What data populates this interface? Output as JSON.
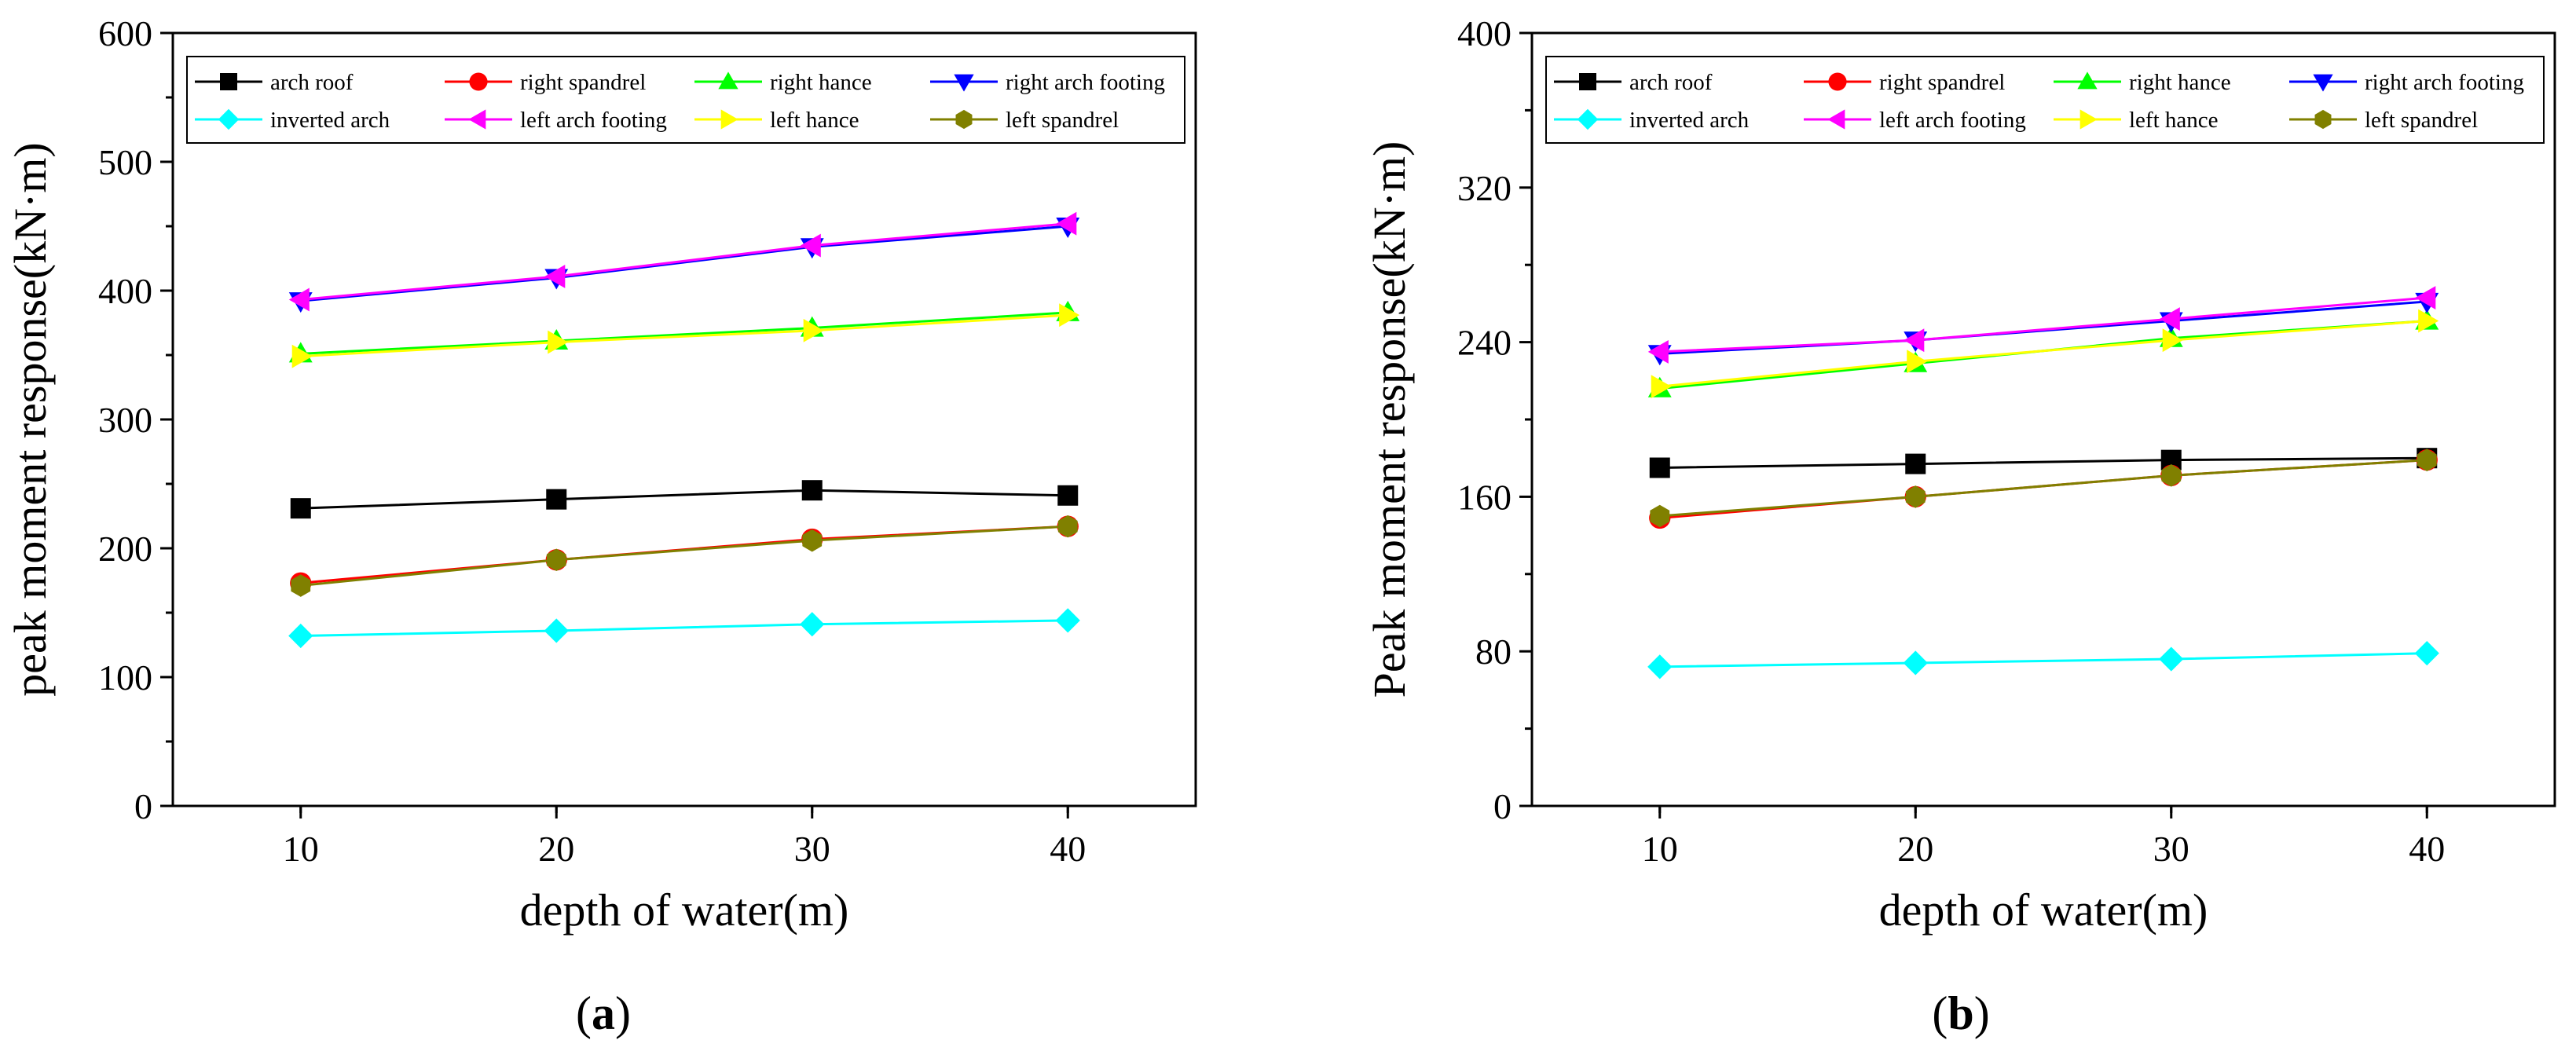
{
  "chart_data": [
    {
      "type": "line",
      "panel_label": "a",
      "xlabel": "depth of water(m)",
      "ylabel": "peak moment response(kN·m)",
      "x": [
        10,
        20,
        30,
        40
      ],
      "xlim": [
        5,
        45
      ],
      "ylim": [
        0,
        600
      ],
      "yticks": [
        0,
        100,
        200,
        300,
        400,
        500,
        600
      ],
      "xticks": [
        10,
        20,
        30,
        40
      ],
      "grid": false,
      "legend_position": "top",
      "series": [
        {
          "name": "arch roof",
          "color": "#000000",
          "marker": "square",
          "values": [
            231,
            238,
            245,
            241
          ]
        },
        {
          "name": "right spandrel",
          "color": "#ff0000",
          "marker": "circle",
          "values": [
            173,
            191,
            207,
            217
          ]
        },
        {
          "name": "right hance",
          "color": "#00ff00",
          "marker": "triangle-up",
          "values": [
            351,
            361,
            371,
            383
          ]
        },
        {
          "name": "right arch footing",
          "color": "#0000ff",
          "marker": "triangle-down",
          "values": [
            392,
            410,
            434,
            450
          ]
        },
        {
          "name": "inverted arch",
          "color": "#00ffff",
          "marker": "diamond",
          "values": [
            132,
            136,
            141,
            144
          ]
        },
        {
          "name": "left arch footing",
          "color": "#ff00ff",
          "marker": "triangle-left",
          "values": [
            393,
            411,
            435,
            452
          ]
        },
        {
          "name": "left hance",
          "color": "#ffff00",
          "marker": "triangle-right",
          "values": [
            349,
            360,
            369,
            381
          ]
        },
        {
          "name": "left spandrel",
          "color": "#808000",
          "marker": "hexagon",
          "values": [
            171,
            191,
            206,
            217
          ]
        }
      ]
    },
    {
      "type": "line",
      "panel_label": "b",
      "xlabel": "depth of water(m)",
      "ylabel": "Peak moment response(kN·m)",
      "x": [
        10,
        20,
        30,
        40
      ],
      "xlim": [
        5,
        45
      ],
      "ylim": [
        0,
        400
      ],
      "yticks": [
        0,
        80,
        160,
        240,
        320,
        400
      ],
      "xticks": [
        10,
        20,
        30,
        40
      ],
      "grid": false,
      "legend_position": "top",
      "series": [
        {
          "name": "arch roof",
          "color": "#000000",
          "marker": "square",
          "values": [
            175,
            177,
            179,
            180
          ]
        },
        {
          "name": "right spandrel",
          "color": "#ff0000",
          "marker": "circle",
          "values": [
            149,
            160,
            171,
            179
          ]
        },
        {
          "name": "right hance",
          "color": "#00ff00",
          "marker": "triangle-up",
          "values": [
            216,
            229,
            242,
            251
          ]
        },
        {
          "name": "right arch footing",
          "color": "#0000ff",
          "marker": "triangle-down",
          "values": [
            234,
            241,
            251,
            261
          ]
        },
        {
          "name": "inverted arch",
          "color": "#00ffff",
          "marker": "diamond",
          "values": [
            72,
            74,
            76,
            79
          ]
        },
        {
          "name": "left arch footing",
          "color": "#ff00ff",
          "marker": "triangle-left",
          "values": [
            235,
            241,
            252,
            263
          ]
        },
        {
          "name": "left hance",
          "color": "#ffff00",
          "marker": "triangle-right",
          "values": [
            217,
            230,
            241,
            251
          ]
        },
        {
          "name": "left spandrel",
          "color": "#808000",
          "marker": "hexagon",
          "values": [
            150,
            160,
            171,
            179
          ]
        }
      ]
    }
  ]
}
